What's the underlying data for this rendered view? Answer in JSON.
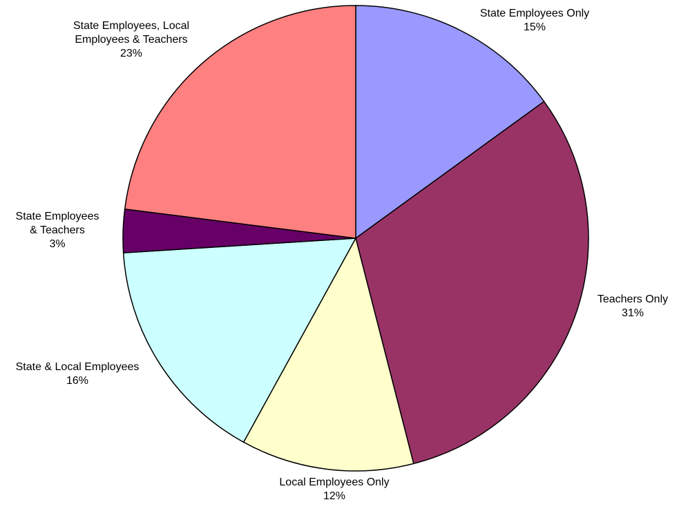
{
  "chart_data": {
    "type": "pie",
    "start_angle_deg": 0,
    "direction": "clockwise",
    "slices": [
      {
        "label_lines": [
          "State Employees Only"
        ],
        "value": 15,
        "value_text": "15%",
        "color": "#9999FF"
      },
      {
        "label_lines": [
          "Teachers Only"
        ],
        "value": 31,
        "value_text": "31%",
        "color": "#993366"
      },
      {
        "label_lines": [
          "Local Employees Only"
        ],
        "value": 12,
        "value_text": "12%",
        "color": "#FFFFCC"
      },
      {
        "label_lines": [
          "State & Local Employees"
        ],
        "value": 16,
        "value_text": "16%",
        "color": "#CCFFFF"
      },
      {
        "label_lines": [
          "State Employees",
          "& Teachers"
        ],
        "value": 3,
        "value_text": "3%",
        "color": "#660066"
      },
      {
        "label_lines": [
          "State Employees, Local",
          "Employees & Teachers"
        ],
        "value": 23,
        "value_text": "23%",
        "color": "#FF8080"
      }
    ]
  }
}
